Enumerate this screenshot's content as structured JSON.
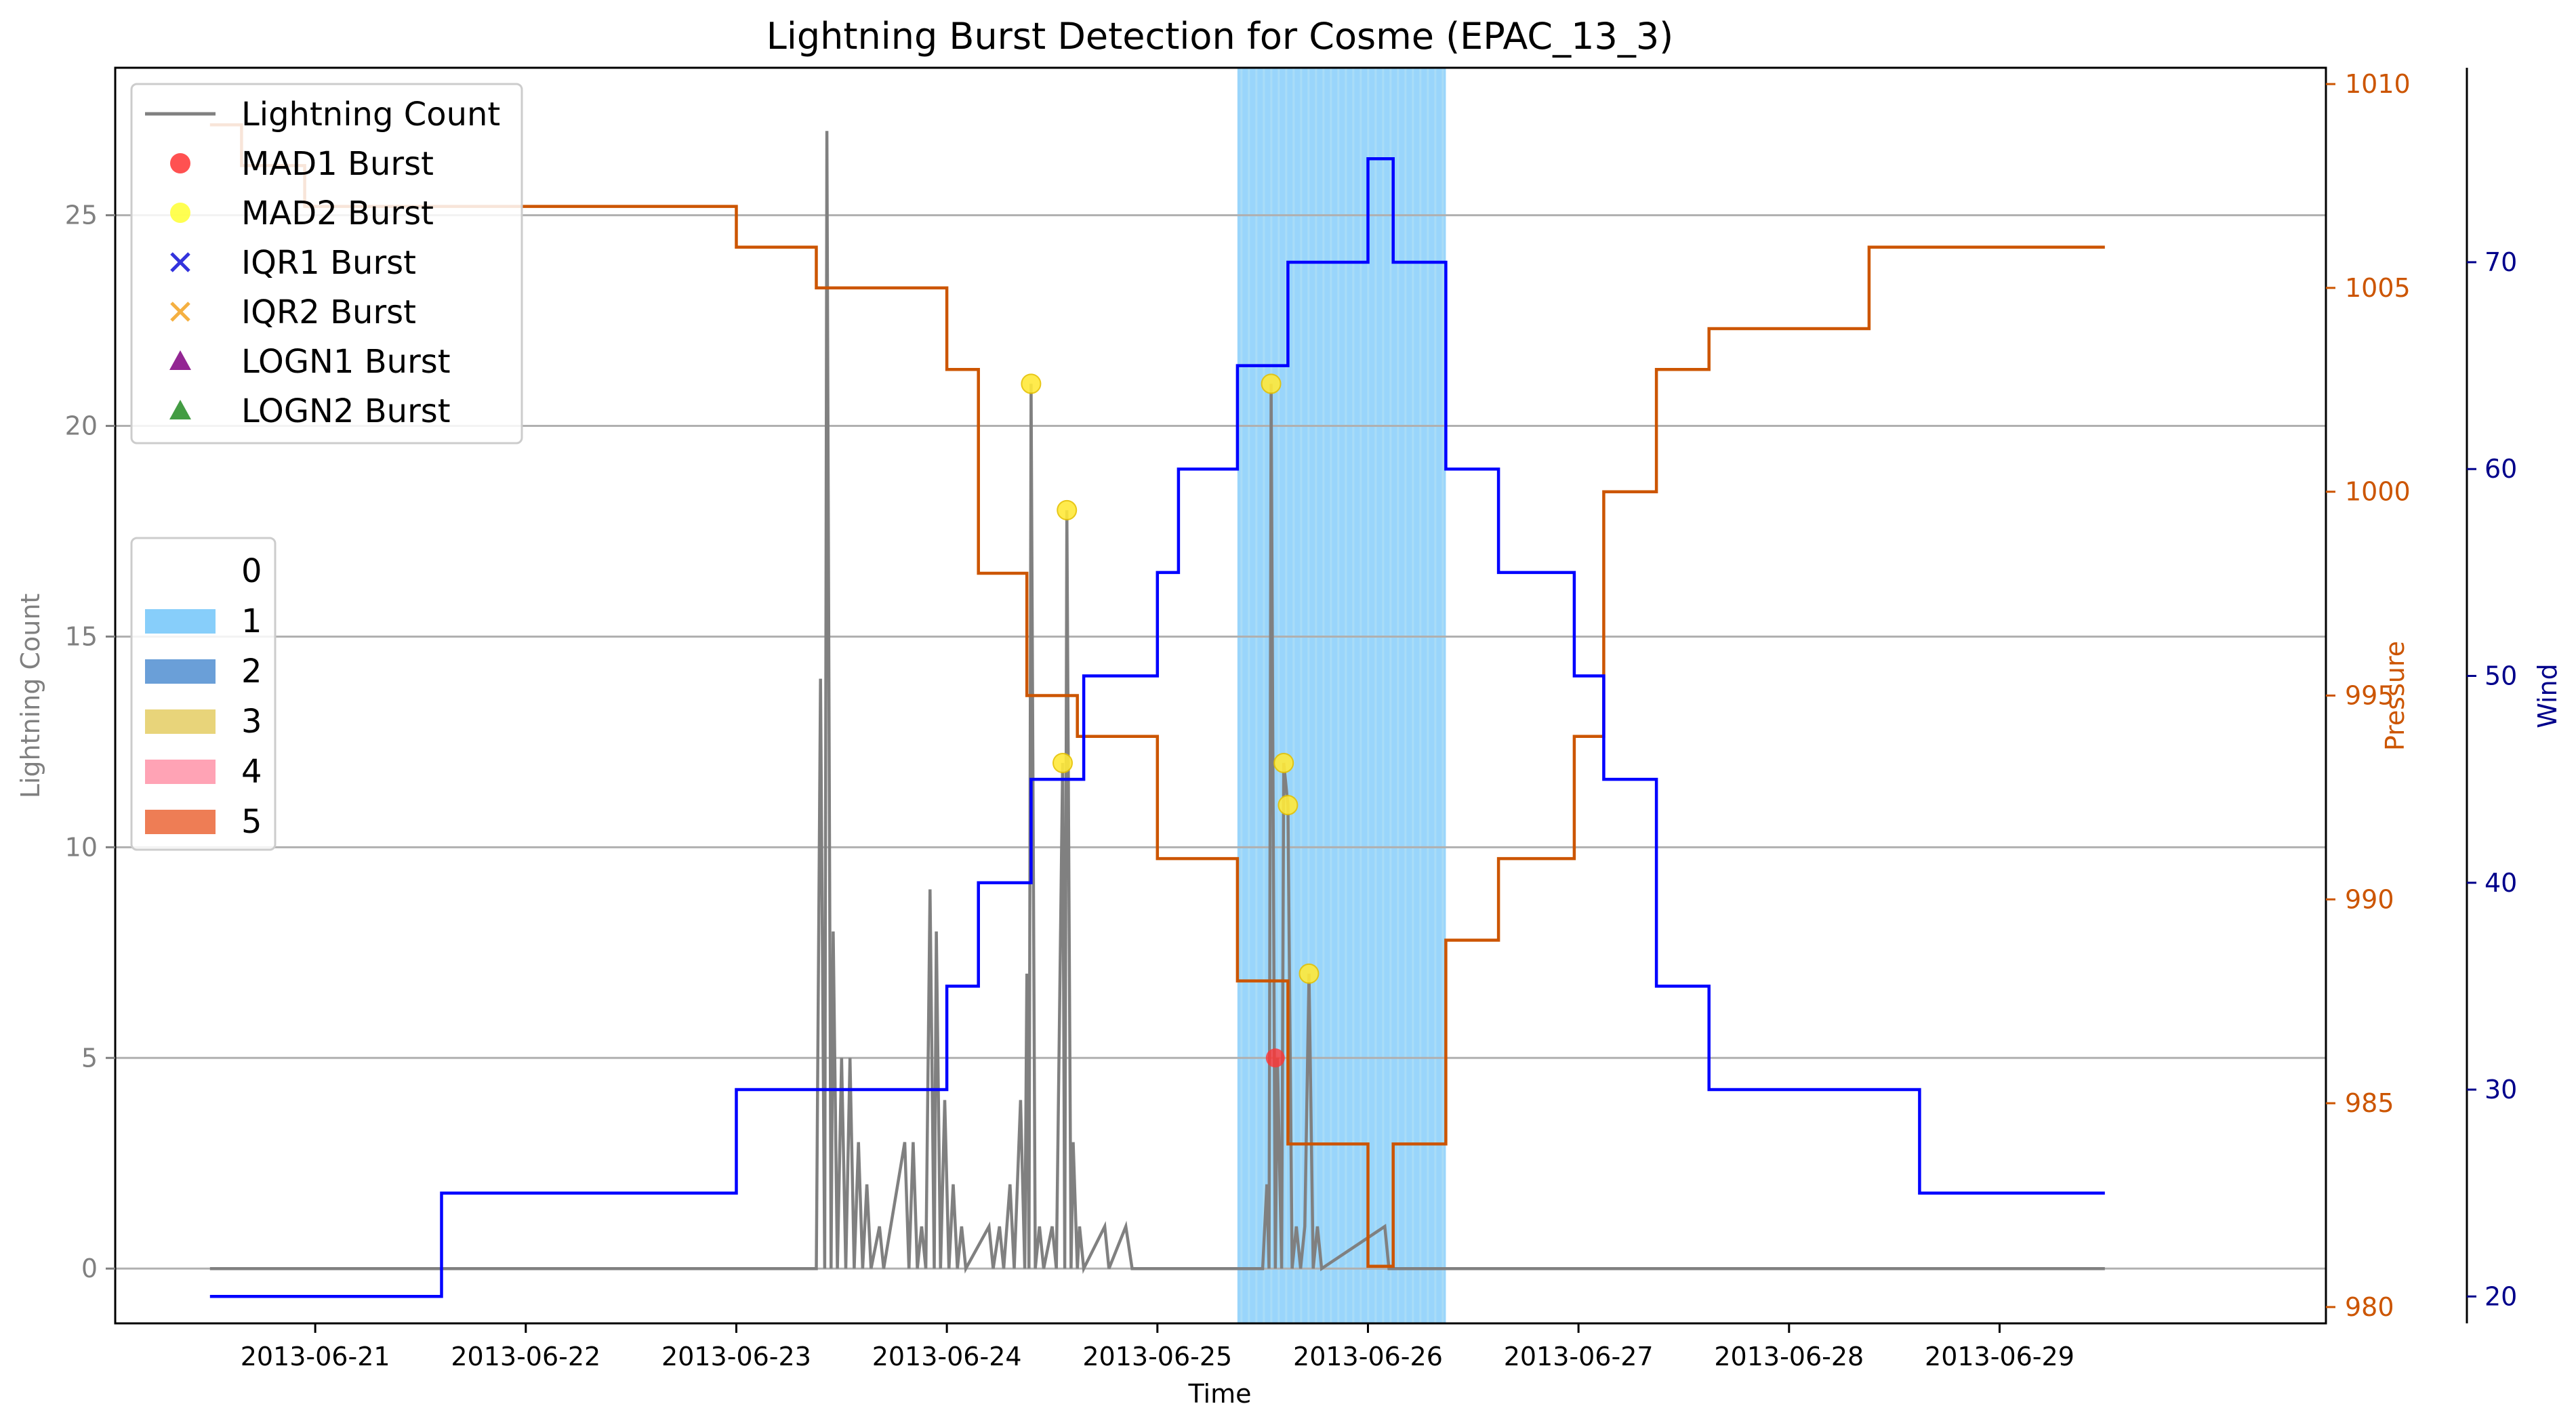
{
  "chart_data": {
    "type": "line",
    "title": "Lightning Burst Detection for Cosme (EPAC_13_3)",
    "xlabel": "Time",
    "ylabel_left": "Lightning Count",
    "ylabel_pressure": "Pressure",
    "ylabel_wind": "Wind",
    "x_ticks": [
      "2013-06-21",
      "2013-06-22",
      "2013-06-23",
      "2013-06-24",
      "2013-06-25",
      "2013-06-26",
      "2013-06-27",
      "2013-06-28",
      "2013-06-29"
    ],
    "x_range_days": [
      -0.95,
      9.55
    ],
    "x_origin_label": "2013-06-21",
    "ylim_left": [
      -1.3,
      28.5
    ],
    "yticks_left": [
      0,
      5,
      10,
      15,
      20,
      25
    ],
    "ylim_pressure": [
      979.6,
      1010.4
    ],
    "yticks_pressure": [
      980,
      985,
      990,
      995,
      1000,
      1005,
      1010
    ],
    "ylim_wind": [
      18.7,
      79.4
    ],
    "yticks_wind": [
      20,
      30,
      40,
      50,
      60,
      70
    ],
    "grid_lines_left": [
      0,
      5,
      10,
      15,
      20,
      25
    ],
    "colors": {
      "lightning": "#808080",
      "pressure": "#cc5500",
      "wind": "#0000ff",
      "shade": "#87cefa",
      "pressure_axis": "#cc5500",
      "wind_axis": "#00008b",
      "left_axis": "#808080"
    },
    "shade_span": [
      4.38,
      5.37
    ],
    "wind": {
      "name": "Wind",
      "points": [
        [
          -0.5,
          20
        ],
        [
          0.6,
          20
        ],
        [
          0.6,
          25
        ],
        [
          2.0,
          25
        ],
        [
          2.0,
          30
        ],
        [
          3.0,
          30
        ],
        [
          3.0,
          35
        ],
        [
          3.15,
          35
        ],
        [
          3.15,
          40
        ],
        [
          3.4,
          40
        ],
        [
          3.4,
          45
        ],
        [
          3.65,
          45
        ],
        [
          3.65,
          50
        ],
        [
          4.0,
          50
        ],
        [
          4.0,
          55
        ],
        [
          4.1,
          55
        ],
        [
          4.1,
          60
        ],
        [
          4.38,
          60
        ],
        [
          4.38,
          65
        ],
        [
          4.62,
          65
        ],
        [
          4.62,
          70
        ],
        [
          5.0,
          70
        ],
        [
          5.0,
          75
        ],
        [
          5.12,
          75
        ],
        [
          5.12,
          70
        ],
        [
          5.37,
          70
        ],
        [
          5.37,
          60
        ],
        [
          5.62,
          60
        ],
        [
          5.62,
          55
        ],
        [
          5.98,
          55
        ],
        [
          5.98,
          50
        ],
        [
          6.12,
          50
        ],
        [
          6.12,
          45
        ],
        [
          6.37,
          45
        ],
        [
          6.37,
          35
        ],
        [
          6.62,
          35
        ],
        [
          6.62,
          30
        ],
        [
          7.62,
          30
        ],
        [
          7.62,
          25
        ],
        [
          8.5,
          25
        ]
      ]
    },
    "pressure": {
      "name": "Pressure",
      "points": [
        [
          -0.5,
          1009
        ],
        [
          -0.35,
          1009
        ],
        [
          -0.35,
          1008
        ],
        [
          -0.05,
          1008
        ],
        [
          -0.05,
          1007
        ],
        [
          2.0,
          1007
        ],
        [
          2.0,
          1006
        ],
        [
          2.38,
          1006
        ],
        [
          2.38,
          1005
        ],
        [
          3.0,
          1005
        ],
        [
          3.0,
          1003
        ],
        [
          3.15,
          1003
        ],
        [
          3.15,
          998
        ],
        [
          3.38,
          998
        ],
        [
          3.38,
          995
        ],
        [
          3.62,
          995
        ],
        [
          3.62,
          994
        ],
        [
          4.0,
          994
        ],
        [
          4.0,
          991
        ],
        [
          4.38,
          991
        ],
        [
          4.38,
          988
        ],
        [
          4.62,
          988
        ],
        [
          4.62,
          984
        ],
        [
          5.0,
          984
        ],
        [
          5.0,
          981
        ],
        [
          5.12,
          981
        ],
        [
          5.12,
          984
        ],
        [
          5.37,
          984
        ],
        [
          5.37,
          989
        ],
        [
          5.62,
          989
        ],
        [
          5.62,
          991
        ],
        [
          5.98,
          991
        ],
        [
          5.98,
          994
        ],
        [
          6.12,
          994
        ],
        [
          6.12,
          1000
        ],
        [
          6.37,
          1000
        ],
        [
          6.37,
          1003
        ],
        [
          6.62,
          1003
        ],
        [
          6.62,
          1004
        ],
        [
          7.38,
          1004
        ],
        [
          7.38,
          1006
        ],
        [
          8.5,
          1006
        ]
      ]
    },
    "lightning": {
      "name": "Lightning Count",
      "points": [
        [
          -0.5,
          0
        ],
        [
          2.38,
          0
        ],
        [
          2.4,
          14
        ],
        [
          2.42,
          0
        ],
        [
          2.43,
          27
        ],
        [
          2.45,
          0
        ],
        [
          2.46,
          8
        ],
        [
          2.48,
          0
        ],
        [
          2.5,
          5
        ],
        [
          2.52,
          0
        ],
        [
          2.54,
          5
        ],
        [
          2.56,
          0
        ],
        [
          2.58,
          3
        ],
        [
          2.6,
          0
        ],
        [
          2.62,
          2
        ],
        [
          2.64,
          0
        ],
        [
          2.68,
          1
        ],
        [
          2.7,
          0
        ],
        [
          2.8,
          3
        ],
        [
          2.82,
          0
        ],
        [
          2.84,
          3
        ],
        [
          2.86,
          0
        ],
        [
          2.88,
          1
        ],
        [
          2.9,
          0
        ],
        [
          2.92,
          9
        ],
        [
          2.94,
          0
        ],
        [
          2.95,
          8
        ],
        [
          2.97,
          0
        ],
        [
          2.99,
          4
        ],
        [
          3.01,
          0
        ],
        [
          3.03,
          2
        ],
        [
          3.05,
          0
        ],
        [
          3.07,
          1
        ],
        [
          3.09,
          0
        ],
        [
          3.2,
          1
        ],
        [
          3.22,
          0
        ],
        [
          3.25,
          1
        ],
        [
          3.27,
          0
        ],
        [
          3.3,
          2
        ],
        [
          3.32,
          0
        ],
        [
          3.35,
          4
        ],
        [
          3.37,
          0
        ],
        [
          3.38,
          7
        ],
        [
          3.39,
          0
        ],
        [
          3.4,
          21
        ],
        [
          3.42,
          0
        ],
        [
          3.44,
          1
        ],
        [
          3.46,
          0
        ],
        [
          3.5,
          1
        ],
        [
          3.52,
          0
        ],
        [
          3.55,
          12
        ],
        [
          3.56,
          0
        ],
        [
          3.57,
          18
        ],
        [
          3.59,
          0
        ],
        [
          3.6,
          3
        ],
        [
          3.62,
          0
        ],
        [
          3.63,
          1
        ],
        [
          3.65,
          0
        ],
        [
          3.75,
          1
        ],
        [
          3.77,
          0
        ],
        [
          3.85,
          1
        ],
        [
          3.88,
          0
        ],
        [
          4.5,
          0
        ],
        [
          4.52,
          2
        ],
        [
          4.53,
          0
        ],
        [
          4.54,
          21
        ],
        [
          4.56,
          0
        ],
        [
          4.57,
          5
        ],
        [
          4.59,
          0
        ],
        [
          4.6,
          12
        ],
        [
          4.62,
          11
        ],
        [
          4.64,
          0
        ],
        [
          4.66,
          1
        ],
        [
          4.68,
          0
        ],
        [
          4.7,
          1
        ],
        [
          4.72,
          7
        ],
        [
          4.74,
          0
        ],
        [
          4.76,
          1
        ],
        [
          4.78,
          0
        ],
        [
          5.08,
          1
        ],
        [
          5.1,
          0
        ],
        [
          8.5,
          0
        ]
      ]
    },
    "mad1_bursts": [
      [
        4.56,
        5
      ]
    ],
    "mad2_bursts": [
      [
        3.4,
        21
      ],
      [
        3.55,
        12
      ],
      [
        3.57,
        18
      ],
      [
        4.54,
        21
      ],
      [
        4.6,
        12
      ],
      [
        4.62,
        11
      ],
      [
        4.72,
        7
      ]
    ],
    "legend_series": [
      {
        "label": "Lightning Count",
        "kind": "line",
        "color": "#808080"
      },
      {
        "label": "MAD1 Burst",
        "kind": "circle",
        "color": "#ff3333"
      },
      {
        "label": "MAD2 Burst",
        "kind": "circle",
        "color": "#ffff33"
      },
      {
        "label": "IQR1 Burst",
        "kind": "x",
        "color": "#3333dd"
      },
      {
        "label": "IQR2 Burst",
        "kind": "x",
        "color": "#f5b041"
      },
      {
        "label": "LOGN1 Burst",
        "kind": "triangle",
        "color": "#800080"
      },
      {
        "label": "LOGN2 Burst",
        "kind": "triangle",
        "color": "#228b22"
      }
    ],
    "legend_categories": [
      {
        "label": "0",
        "color": "#ffffff"
      },
      {
        "label": "1",
        "color": "#87cefa"
      },
      {
        "label": "2",
        "color": "#6a9fd8"
      },
      {
        "label": "3",
        "color": "#e8d47a"
      },
      {
        "label": "4",
        "color": "#ffa3b5"
      },
      {
        "label": "5",
        "color": "#ee7d55"
      }
    ]
  }
}
